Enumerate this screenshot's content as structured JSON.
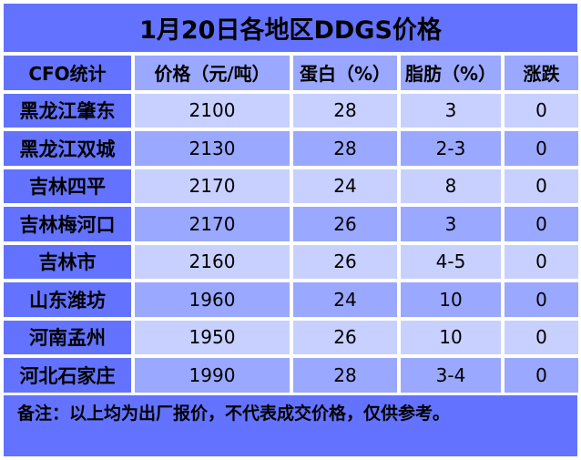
{
  "title": "1月20日各地区DDGS价格",
  "headers": [
    "CFO统计",
    "价格（元/吨）",
    "蛋白（%）",
    "脂肪（%）",
    "涨跌"
  ],
  "rows": [
    [
      "黑龙江肇东",
      "2100",
      "28",
      "3",
      "0"
    ],
    [
      "黑龙江双城",
      "2130",
      "28",
      "2-3",
      "0"
    ],
    [
      "吉林四平",
      "2170",
      "24",
      "8",
      "0"
    ],
    [
      "吉林梅河口",
      "2170",
      "26",
      "3",
      "0"
    ],
    [
      "吉林市",
      "2160",
      "26",
      "4-5",
      "0"
    ],
    [
      "山东潍坊",
      "1960",
      "24",
      "10",
      "0"
    ],
    [
      "河南孟州",
      "1950",
      "26",
      "10",
      "0"
    ],
    [
      "河北石家庄",
      "1990",
      "28",
      "3-4",
      "0"
    ]
  ],
  "note": "备注：以上均为出厂报价，不代表成交价格，仅供参考。",
  "colors": {
    "dark": "#6373ff",
    "medium": "#9aa8ff",
    "light": "#c8d0ff"
  }
}
